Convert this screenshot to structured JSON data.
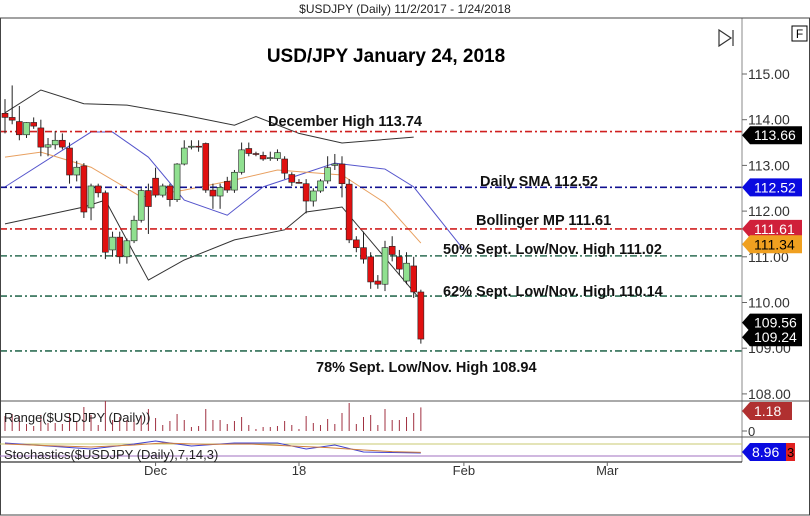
{
  "window_title": "$USDJPY (Daily)  11/2/2017 - 1/24/2018",
  "toolbar": {
    "end_button_icon": "skip-to-end-icon",
    "f_button_label": "F"
  },
  "chart_data": {
    "type": "candlestick",
    "title": "USD/JPY January 24, 2018",
    "ylim": [
      107.6,
      116.0
    ],
    "y_ticks": [
      "115.00",
      "114.00",
      "113.00",
      "112.00",
      "111.00",
      "110.00",
      "109.00",
      "108.00"
    ],
    "x_tick_labels": [
      {
        "label": "Dec",
        "index": 21
      },
      {
        "label": "18",
        "index": 41
      },
      {
        "label": "Feb",
        "index": 64
      },
      {
        "label": "Mar",
        "index": 84
      }
    ],
    "ohlc": [
      [
        114.14,
        114.45,
        113.7,
        114.05
      ],
      [
        114.05,
        114.75,
        113.9,
        113.99
      ],
      [
        113.96,
        114.3,
        113.55,
        113.67
      ],
      [
        113.67,
        113.95,
        113.6,
        113.94
      ],
      [
        113.94,
        114.05,
        113.8,
        113.86
      ],
      [
        113.82,
        114.0,
        113.2,
        113.4
      ],
      [
        113.4,
        113.6,
        113.2,
        113.45
      ],
      [
        113.45,
        113.75,
        113.35,
        113.55
      ],
      [
        113.55,
        113.7,
        113.35,
        113.4
      ],
      [
        113.38,
        113.5,
        112.6,
        112.79
      ],
      [
        112.79,
        113.1,
        112.65,
        112.96
      ],
      [
        112.99,
        113.05,
        111.85,
        111.98
      ],
      [
        112.07,
        112.6,
        111.8,
        112.55
      ],
      [
        112.55,
        112.6,
        112.3,
        112.4
      ],
      [
        112.4,
        112.45,
        110.95,
        111.1
      ],
      [
        111.15,
        111.55,
        111.0,
        111.43
      ],
      [
        111.43,
        111.55,
        110.85,
        111.0
      ],
      [
        111.0,
        111.4,
        110.85,
        111.35
      ],
      [
        111.35,
        111.9,
        111.3,
        111.8
      ],
      [
        111.8,
        112.5,
        111.75,
        112.45
      ],
      [
        112.45,
        112.6,
        111.5,
        112.1
      ],
      [
        112.72,
        112.95,
        112.3,
        112.35
      ],
      [
        112.35,
        112.6,
        112.3,
        112.55
      ],
      [
        112.55,
        112.6,
        112.1,
        112.25
      ],
      [
        112.25,
        113.05,
        112.2,
        113.03
      ],
      [
        113.03,
        113.55,
        113.0,
        113.38
      ],
      [
        113.4,
        113.55,
        113.35,
        113.42
      ],
      [
        113.42,
        113.55,
        113.3,
        113.4
      ],
      [
        113.48,
        113.5,
        112.4,
        112.46
      ],
      [
        112.46,
        112.6,
        112.05,
        112.33
      ],
      [
        112.33,
        112.6,
        112.05,
        112.52
      ],
      [
        112.65,
        112.75,
        112.4,
        112.46
      ],
      [
        112.46,
        112.9,
        112.4,
        112.85
      ],
      [
        112.85,
        113.5,
        112.8,
        113.34
      ],
      [
        113.37,
        113.5,
        113.2,
        113.26
      ],
      [
        113.26,
        113.3,
        113.2,
        113.25
      ],
      [
        113.22,
        113.3,
        113.1,
        113.14
      ],
      [
        113.15,
        113.3,
        113.1,
        113.17
      ],
      [
        113.15,
        113.35,
        113.1,
        113.28
      ],
      [
        113.14,
        113.2,
        112.7,
        112.83
      ],
      [
        112.8,
        112.85,
        112.55,
        112.63
      ],
      [
        112.63,
        112.7,
        112.6,
        112.62
      ],
      [
        112.6,
        112.7,
        111.95,
        112.22
      ],
      [
        112.22,
        112.5,
        112.1,
        112.44
      ],
      [
        112.44,
        112.7,
        112.4,
        112.66
      ],
      [
        112.66,
        113.2,
        112.6,
        112.95
      ],
      [
        113.0,
        113.25,
        112.9,
        113.03
      ],
      [
        113.03,
        113.2,
        112.3,
        112.6
      ],
      [
        112.59,
        112.7,
        111.3,
        111.37
      ],
      [
        111.37,
        111.45,
        111.1,
        111.2
      ],
      [
        111.2,
        111.55,
        110.85,
        110.95
      ],
      [
        111.0,
        111.1,
        110.3,
        110.45
      ],
      [
        110.47,
        110.6,
        110.3,
        110.4
      ],
      [
        110.4,
        111.35,
        110.25,
        111.2
      ],
      [
        111.23,
        111.45,
        110.9,
        111.05
      ],
      [
        111.0,
        111.15,
        110.6,
        110.73
      ],
      [
        110.47,
        111.1,
        110.4,
        110.86
      ],
      [
        110.8,
        111.0,
        110.1,
        110.23
      ],
      [
        110.23,
        110.28,
        109.1,
        109.2
      ]
    ],
    "overlays": [
      {
        "kind": "bollinger-upper",
        "color": "#333333",
        "points": [
          [
            0,
            114.15
          ],
          [
            5,
            114.65
          ],
          [
            11,
            114.35
          ],
          [
            17,
            114.32
          ],
          [
            25,
            114.1
          ],
          [
            32,
            113.88
          ],
          [
            35,
            114.07
          ],
          [
            41,
            113.7
          ],
          [
            47,
            113.49
          ],
          [
            57,
            113.62
          ]
        ]
      },
      {
        "kind": "bollinger-middle",
        "color": "#5555cc",
        "points": [
          [
            0,
            112.53
          ],
          [
            12,
            113.73
          ],
          [
            15,
            113.73
          ],
          [
            20,
            113.18
          ],
          [
            25,
            112.24
          ],
          [
            31,
            111.91
          ],
          [
            36,
            112.53
          ],
          [
            46,
            113.05
          ],
          [
            53,
            112.92
          ],
          [
            57,
            112.53
          ],
          [
            64,
            111.15
          ]
        ]
      },
      {
        "kind": "bollinger-lower",
        "color": "#333333",
        "points": [
          [
            0,
            111.72
          ],
          [
            11,
            112.09
          ],
          [
            14,
            112.24
          ],
          [
            20,
            110.49
          ],
          [
            25,
            110.93
          ],
          [
            32,
            111.37
          ],
          [
            39,
            111.59
          ],
          [
            42,
            111.98
          ],
          [
            47,
            112.09
          ],
          [
            58,
            110.05
          ]
        ]
      },
      {
        "kind": "moving-average",
        "color": "#e8a060",
        "points": [
          [
            0,
            113.18
          ],
          [
            5,
            113.29
          ],
          [
            12,
            112.96
          ],
          [
            19,
            112.31
          ],
          [
            25,
            112.46
          ],
          [
            32,
            112.68
          ],
          [
            38,
            112.9
          ],
          [
            47,
            112.79
          ],
          [
            53,
            112.18
          ],
          [
            58,
            111.3
          ]
        ]
      }
    ],
    "levels": [
      {
        "label": "December High 113.74",
        "value": 113.74,
        "color": "#d02020"
      },
      {
        "label": "Daily SMA 112.52",
        "value": 112.52,
        "color": "#101090"
      },
      {
        "label": "Bollinger MP 111.61",
        "value": 111.61,
        "color": "#d02020"
      },
      {
        "label": "50% Sept. Low/Nov. High 111.02",
        "value": 111.02,
        "color": "#2e6e55"
      },
      {
        "label": "62% Sept. Low/Nov. High 110.14",
        "value": 110.14,
        "color": "#2e6e55"
      },
      {
        "label": "78% Sept. Low/Nov. High 108.94",
        "value": 108.94,
        "color": "#2e6e55"
      }
    ],
    "price_tags": [
      {
        "text": "113.66",
        "value": 113.66,
        "bg": "#000000",
        "fg": "#ffffff"
      },
      {
        "text": "112.52",
        "value": 112.52,
        "bg": "#0a0ae0",
        "fg": "#ffffff"
      },
      {
        "text": "111.61",
        "value": 111.61,
        "bg": "#d0203a",
        "fg": "#ffffff"
      },
      {
        "text": "111.34",
        "value": 111.34,
        "bg": "#f0a020",
        "fg": "#000000"
      },
      {
        "text": "109.56",
        "value": 109.56,
        "bg": "#000000",
        "fg": "#ffffff"
      },
      {
        "text": "109.24",
        "value": 109.24,
        "bg": "#000000",
        "fg": "#ffffff"
      }
    ],
    "colors": {
      "up": "#90e090",
      "down": "#e01010",
      "grid_axis": "#888888"
    },
    "range_panel": {
      "label": "Range($USDJPY (Daily))",
      "tag": "1.18",
      "zero_label": "0",
      "tag_color": "#b03030"
    },
    "stochastics_panel": {
      "label": "Stochastics($USDJPY (Daily),7,14,3)",
      "tag": "8.96",
      "tag_color": "#0a0ae0",
      "tag2_text": "3",
      "tag2_color": "#e02020",
      "k": [
        [
          0,
          85
        ],
        [
          6,
          70
        ],
        [
          12,
          55
        ],
        [
          18,
          80
        ],
        [
          21,
          95
        ],
        [
          26,
          70
        ],
        [
          32,
          85
        ],
        [
          38,
          85
        ],
        [
          42,
          55
        ],
        [
          46,
          75
        ],
        [
          50,
          40
        ],
        [
          53,
          38
        ],
        [
          58,
          35
        ]
      ],
      "d": [
        [
          0,
          80
        ],
        [
          6,
          72
        ],
        [
          12,
          65
        ],
        [
          18,
          75
        ],
        [
          22,
          85
        ],
        [
          28,
          78
        ],
        [
          34,
          80
        ],
        [
          40,
          70
        ],
        [
          45,
          62
        ],
        [
          50,
          50
        ],
        [
          54,
          42
        ],
        [
          58,
          38
        ]
      ]
    }
  }
}
